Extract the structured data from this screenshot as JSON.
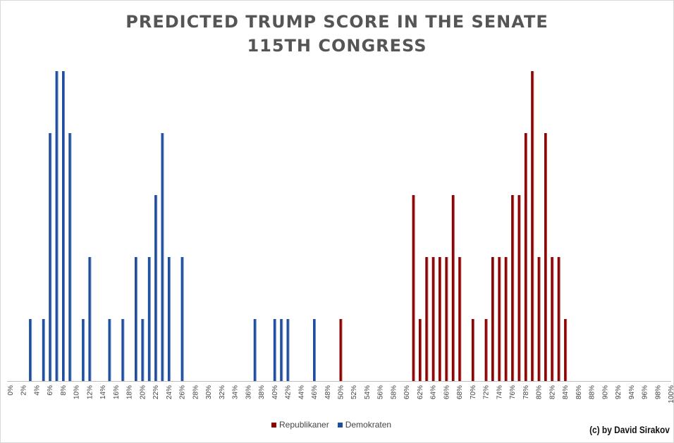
{
  "colors": {
    "rep": "#8B0000",
    "dem": "#1F4E9E"
  },
  "chart_data": {
    "type": "bar",
    "title": "PREDICTED TRUMP SCORE IN THE SENATE",
    "subtitle": "115TH CONGRESS",
    "xlabel": "",
    "ylabel": "",
    "grid": false,
    "legend_position": "bottom",
    "x_ticks": [
      "0%",
      "2%",
      "4%",
      "6%",
      "8%",
      "10%",
      "12%",
      "14%",
      "16%",
      "18%",
      "20%",
      "22%",
      "24%",
      "26%",
      "28%",
      "30%",
      "32%",
      "34%",
      "36%",
      "38%",
      "40%",
      "42%",
      "44%",
      "46%",
      "48%",
      "50%",
      "52%",
      "54%",
      "56%",
      "58%",
      "60%",
      "62%",
      "64%",
      "66%",
      "68%",
      "70%",
      "72%",
      "74%",
      "76%",
      "78%",
      "80%",
      "82%",
      "84%",
      "86%",
      "88%",
      "90%",
      "92%",
      "94%",
      "96%",
      "98%",
      "100%"
    ],
    "series": [
      {
        "name": "Republikaner",
        "color": "#8B0000",
        "points": [
          [
            50,
            1
          ],
          [
            61,
            3
          ],
          [
            62,
            1
          ],
          [
            63,
            2
          ],
          [
            64,
            2
          ],
          [
            65,
            2
          ],
          [
            66,
            2
          ],
          [
            67,
            3
          ],
          [
            68,
            2
          ],
          [
            70,
            1
          ],
          [
            72,
            1
          ],
          [
            73,
            2
          ],
          [
            74,
            2
          ],
          [
            75,
            2
          ],
          [
            76,
            3
          ],
          [
            77,
            3
          ],
          [
            78,
            4
          ],
          [
            79,
            5
          ],
          [
            80,
            2
          ],
          [
            81,
            4
          ],
          [
            82,
            2
          ],
          [
            83,
            2
          ],
          [
            84,
            1
          ]
        ]
      },
      {
        "name": "Demokraten",
        "color": "#1F4E9E",
        "points": [
          [
            3,
            1
          ],
          [
            5,
            1
          ],
          [
            6,
            4
          ],
          [
            7,
            5
          ],
          [
            8,
            5
          ],
          [
            9,
            4
          ],
          [
            11,
            1
          ],
          [
            12,
            2
          ],
          [
            15,
            1
          ],
          [
            17,
            1
          ],
          [
            19,
            2
          ],
          [
            20,
            1
          ],
          [
            21,
            2
          ],
          [
            22,
            3
          ],
          [
            23,
            4
          ],
          [
            24,
            2
          ],
          [
            26,
            2
          ],
          [
            37,
            1
          ],
          [
            40,
            1
          ],
          [
            41,
            1
          ],
          [
            42,
            1
          ],
          [
            46,
            1
          ]
        ]
      }
    ],
    "ylim": [
      0,
      5
    ]
  },
  "credit": "(c) by David Sirakov"
}
